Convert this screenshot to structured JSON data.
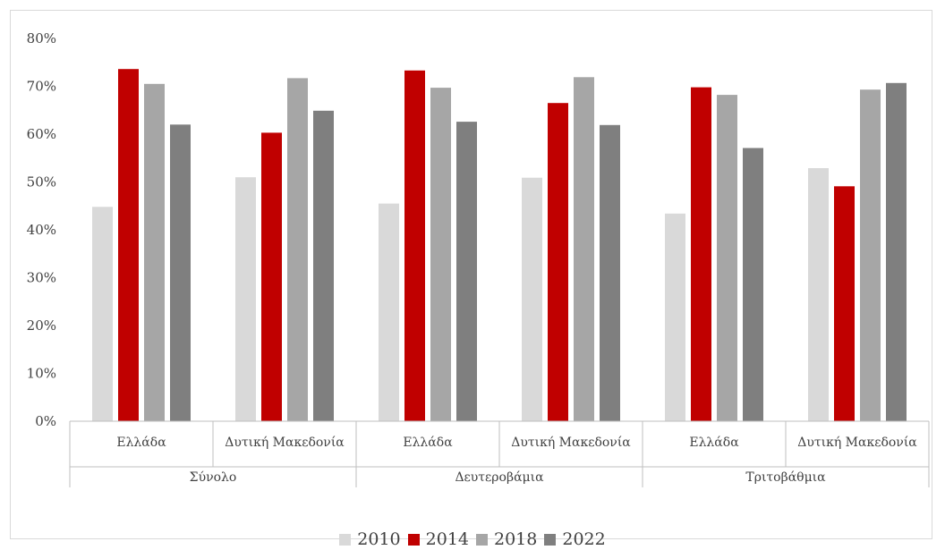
{
  "chart_data": {
    "type": "bar",
    "groups": [
      {
        "label": "Σύνολο",
        "categories": [
          "Ελλάδα",
          "Δυτική Μακεδονία"
        ]
      },
      {
        "label": "Δευτεροβάμια",
        "categories": [
          "Ελλάδα",
          "Δυτική Μακεδονία"
        ]
      },
      {
        "label": "Τριτοβάθμια",
        "categories": [
          "Ελλάδα",
          "Δυτική Μακεδονία"
        ]
      }
    ],
    "categories": [
      "Σύνολο / Ελλάδα",
      "Σύνολο / Δυτική Μακεδονία",
      "Δευτεροβάμια / Ελλάδα",
      "Δευτεροβάμια / Δυτική Μακεδονία",
      "Τριτοβάθμια / Ελλάδα",
      "Τριτοβάθμια / Δυτική Μακεδονία"
    ],
    "series": [
      {
        "name": "2010",
        "color": "#d9d9d9",
        "values": [
          44.8,
          51.0,
          45.5,
          50.9,
          43.4,
          52.9
        ]
      },
      {
        "name": "2014",
        "color": "#c00000",
        "values": [
          73.6,
          60.3,
          73.3,
          66.5,
          69.8,
          49.1
        ]
      },
      {
        "name": "2018",
        "color": "#a6a6a6",
        "values": [
          70.5,
          71.7,
          69.7,
          71.9,
          68.2,
          69.3
        ]
      },
      {
        "name": "2022",
        "color": "#7f7f7f",
        "values": [
          62.0,
          64.9,
          62.6,
          61.9,
          57.1,
          70.7
        ]
      }
    ],
    "ylim": [
      0,
      80
    ],
    "yticks": [
      0,
      10,
      20,
      30,
      40,
      50,
      60,
      70,
      80
    ],
    "ytick_labels": [
      "0%",
      "10%",
      "20%",
      "30%",
      "40%",
      "50%",
      "60%",
      "70%",
      "80%"
    ],
    "title": "",
    "xlabel": "",
    "ylabel": "",
    "grid": false,
    "legend": "bottom"
  }
}
